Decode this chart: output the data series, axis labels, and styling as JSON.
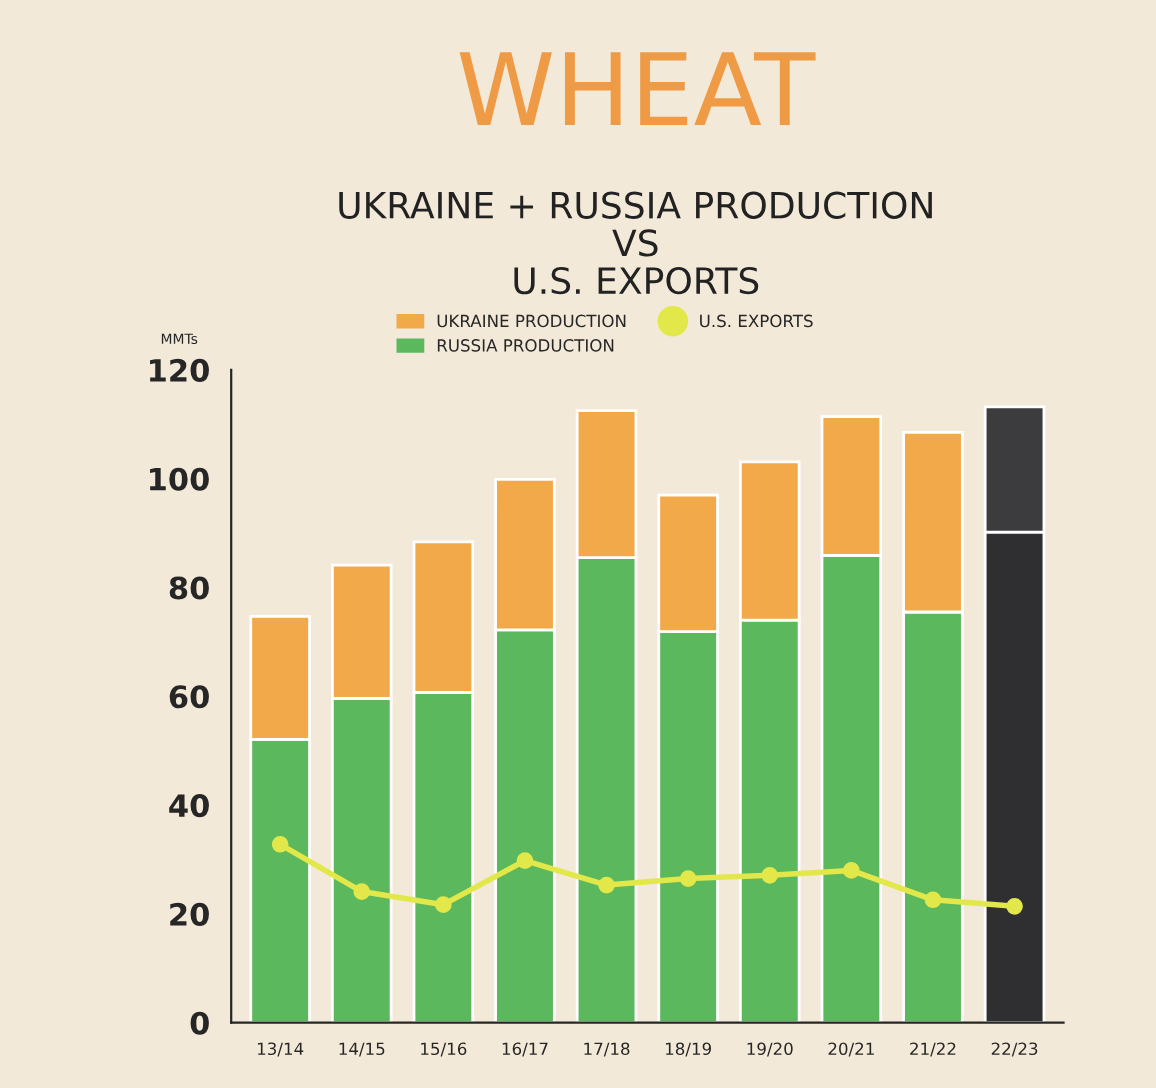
{
  "chart_data": {
    "type": "bar",
    "title": "WHEAT",
    "subtitle": "UKRAINE + RUSSIA PRODUCTION\nVS\nU.S. EXPORTS",
    "ylabel": "MMTs",
    "categories": [
      "13/14",
      "14/15",
      "15/16",
      "16/17",
      "17/18",
      "18/19",
      "19/20",
      "20/21",
      "21/22",
      "22/23"
    ],
    "stacked": true,
    "series": [
      {
        "name": "RUSSIA PRODUCTION",
        "color": "#5cb85c",
        "colors": [
          "#5cb85c",
          "#5cb85c",
          "#5cb85c",
          "#5cb85c",
          "#5cb85c",
          "#5cb85c",
          "#5cb85c",
          "#5cb85c",
          "#5cb85c",
          "#2f2f31"
        ],
        "values": [
          52.1,
          59.6,
          60.7,
          72.2,
          85.5,
          71.9,
          74.0,
          85.9,
          75.5,
          90.2
        ]
      },
      {
        "name": "UKRAINE PRODUCTION",
        "color": "#f2a94a",
        "colors": [
          "#f2a94a",
          "#f2a94a",
          "#f2a94a",
          "#f2a94a",
          "#f2a94a",
          "#f2a94a",
          "#f2a94a",
          "#f2a94a",
          "#f2a94a",
          "#3c3c3e"
        ],
        "values": [
          22.6,
          24.5,
          27.7,
          27.7,
          27.0,
          25.1,
          29.1,
          25.5,
          33.0,
          23.0
        ]
      },
      {
        "name": "U.S. EXPORTS",
        "type": "line",
        "color": "#e3e84a",
        "marker": "circle",
        "values": [
          32.8,
          24.1,
          21.7,
          29.8,
          25.3,
          26.5,
          27.1,
          28.0,
          22.6,
          21.4
        ]
      }
    ],
    "ylim": [
      0,
      120
    ],
    "yticks": [
      0,
      20,
      40,
      60,
      80,
      100,
      120
    ],
    "grid": false,
    "legend": "top"
  }
}
